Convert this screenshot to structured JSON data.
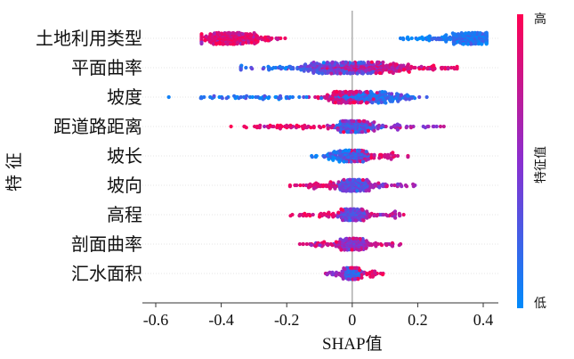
{
  "chart_data": {
    "type": "scatter",
    "subtype": "shap-beeswarm",
    "ylabel": "特征",
    "xlabel": "SHAP值",
    "xlim": [
      -0.62,
      0.46
    ],
    "xticks": [
      -0.6,
      -0.4,
      -0.2,
      0,
      0.2,
      0.4
    ],
    "xtick_labels": [
      "-0.6",
      "-0.4",
      "-0.2",
      "0",
      "0.2",
      "0.4"
    ],
    "colorbar": {
      "label": "特征值",
      "high": "高",
      "low": "低",
      "high_color": "#ff0052",
      "low_color": "#008bfb"
    },
    "features": [
      {
        "name": "土地利用类型",
        "min": -0.46,
        "max": 0.41,
        "clusters": [
          {
            "c": -0.38,
            "s": 0.045,
            "n": 230,
            "v": 0.88
          },
          {
            "c": -0.31,
            "s": 0.05,
            "n": 70,
            "v": 0.85
          },
          {
            "c": 0.37,
            "s": 0.035,
            "n": 200,
            "v": 0.12
          },
          {
            "c": 0.26,
            "s": 0.07,
            "n": 60,
            "v": 0.1
          }
        ]
      },
      {
        "name": "平面曲率",
        "min": -0.34,
        "max": 0.32,
        "clusters": [
          {
            "c": 0.03,
            "s": 0.07,
            "n": 260,
            "v": 0.72
          },
          {
            "c": -0.06,
            "s": 0.07,
            "n": 160,
            "v": 0.35
          },
          {
            "c": 0.17,
            "s": 0.08,
            "n": 60,
            "v": 0.85
          },
          {
            "c": -0.22,
            "s": 0.08,
            "n": 30,
            "v": 0.2
          }
        ]
      },
      {
        "name": "坡度",
        "min": -0.56,
        "max": 0.23,
        "clusters": [
          {
            "c": 0.04,
            "s": 0.05,
            "n": 220,
            "v": 0.15
          },
          {
            "c": -0.03,
            "s": 0.04,
            "n": 110,
            "v": 0.8
          },
          {
            "c": -0.3,
            "s": 0.13,
            "n": 55,
            "v": 0.1
          },
          {
            "c": 0.15,
            "s": 0.05,
            "n": 30,
            "v": 0.2
          }
        ]
      },
      {
        "name": "距道路距离",
        "min": -0.37,
        "max": 0.28,
        "clusters": [
          {
            "c": 0.01,
            "s": 0.03,
            "n": 220,
            "v": 0.3
          },
          {
            "c": -0.18,
            "s": 0.09,
            "n": 60,
            "v": 0.9
          },
          {
            "c": 0.13,
            "s": 0.08,
            "n": 50,
            "v": 0.6
          }
        ]
      },
      {
        "name": "坡长",
        "min": -0.14,
        "max": 0.17,
        "clusters": [
          {
            "c": 0.0,
            "s": 0.025,
            "n": 220,
            "v": 0.25
          },
          {
            "c": 0.06,
            "s": 0.05,
            "n": 50,
            "v": 0.8
          },
          {
            "c": -0.05,
            "s": 0.04,
            "n": 40,
            "v": 0.15
          }
        ]
      },
      {
        "name": "坡向",
        "min": -0.19,
        "max": 0.21,
        "clusters": [
          {
            "c": 0.0,
            "s": 0.022,
            "n": 240,
            "v": 0.3
          },
          {
            "c": -0.09,
            "s": 0.05,
            "n": 45,
            "v": 0.85
          },
          {
            "c": 0.09,
            "s": 0.05,
            "n": 40,
            "v": 0.6
          }
        ]
      },
      {
        "name": "高程",
        "min": -0.27,
        "max": 0.19,
        "clusters": [
          {
            "c": 0.0,
            "s": 0.02,
            "n": 230,
            "v": 0.35
          },
          {
            "c": -0.1,
            "s": 0.05,
            "n": 35,
            "v": 0.9
          },
          {
            "c": 0.09,
            "s": 0.05,
            "n": 35,
            "v": 0.7
          }
        ]
      },
      {
        "name": "剖面曲率",
        "min": -0.16,
        "max": 0.16,
        "clusters": [
          {
            "c": 0.0,
            "s": 0.018,
            "n": 220,
            "v": 0.5
          },
          {
            "c": -0.08,
            "s": 0.04,
            "n": 35,
            "v": 0.85
          },
          {
            "c": 0.08,
            "s": 0.04,
            "n": 30,
            "v": 0.75
          }
        ]
      },
      {
        "name": "汇水面积",
        "min": -0.11,
        "max": 0.18,
        "clusters": [
          {
            "c": 0.0,
            "s": 0.012,
            "n": 240,
            "v": 0.2
          },
          {
            "c": 0.05,
            "s": 0.03,
            "n": 35,
            "v": 0.9
          },
          {
            "c": -0.05,
            "s": 0.025,
            "n": 25,
            "v": 0.6
          }
        ]
      }
    ]
  }
}
